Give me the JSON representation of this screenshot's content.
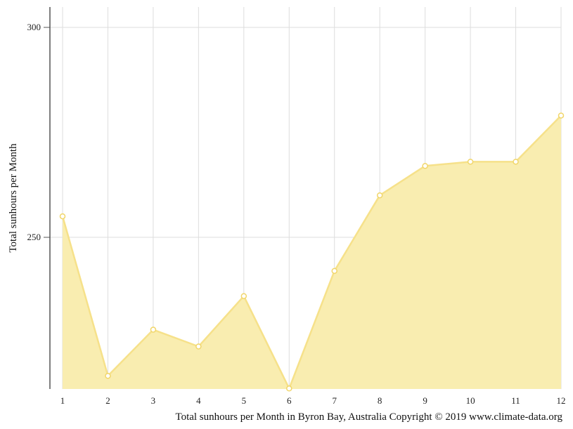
{
  "chart_data": {
    "type": "area",
    "x": [
      1,
      2,
      3,
      4,
      5,
      6,
      7,
      8,
      9,
      10,
      11,
      12
    ],
    "series": [
      {
        "values": [
          255,
          217,
          228,
          224,
          236,
          214,
          242,
          260,
          267,
          268,
          268,
          279
        ],
        "fill_color": "#f9edb0",
        "line_color": "#f6e18a",
        "marker_color": "#f1d66a"
      }
    ],
    "ylabel": "Total sunhours per Month",
    "caption": "Total sunhours per Month in Byron Bay, Australia Copyright © 2019 www.climate-data.org",
    "y_ticks": [
      250,
      300
    ],
    "y_tick_labels": [
      "250",
      "300"
    ],
    "x_tick_labels": [
      "1",
      "2",
      "3",
      "4",
      "5",
      "6",
      "7",
      "8",
      "9",
      "10",
      "11",
      "12"
    ],
    "ylim": [
      214,
      305
    ],
    "grid": true,
    "grid_color": "#dddddd",
    "axis_color": "#555555"
  }
}
